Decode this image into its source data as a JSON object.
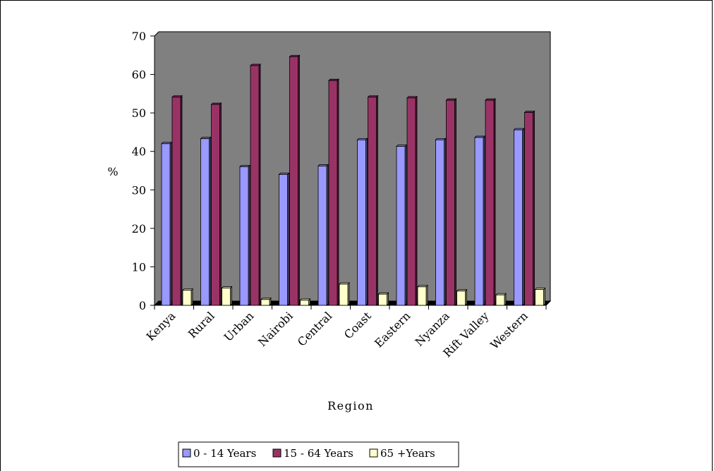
{
  "chart_data": {
    "type": "bar",
    "title": "",
    "xlabel": "Region",
    "ylabel": "%",
    "ylim": [
      0,
      70
    ],
    "yticks": [
      0,
      10,
      20,
      30,
      40,
      50,
      60,
      70
    ],
    "categories": [
      "Kenya",
      "Rural",
      "Urban",
      "Nairobi",
      "Central",
      "Coast",
      "Eastern",
      "Nyanza",
      "Rift Valley",
      "Western"
    ],
    "series": [
      {
        "name": "0 - 14 Years",
        "color": "#9999ff",
        "values": [
          42.0,
          43.3,
          36.0,
          34.0,
          36.2,
          43.0,
          41.3,
          43.0,
          43.6,
          45.6
        ]
      },
      {
        "name": "15 - 64 Years",
        "color": "#993366",
        "values": [
          54.1,
          52.2,
          62.3,
          64.6,
          58.4,
          54.1,
          53.9,
          53.3,
          53.3,
          50.1
        ]
      },
      {
        "name": "65 +Years",
        "color": "#ffffcc",
        "values": [
          3.9,
          4.5,
          1.5,
          1.3,
          5.5,
          2.9,
          4.8,
          3.7,
          2.7,
          4.1
        ]
      }
    ],
    "plot_background": "#808080",
    "legend_position": "bottom"
  }
}
